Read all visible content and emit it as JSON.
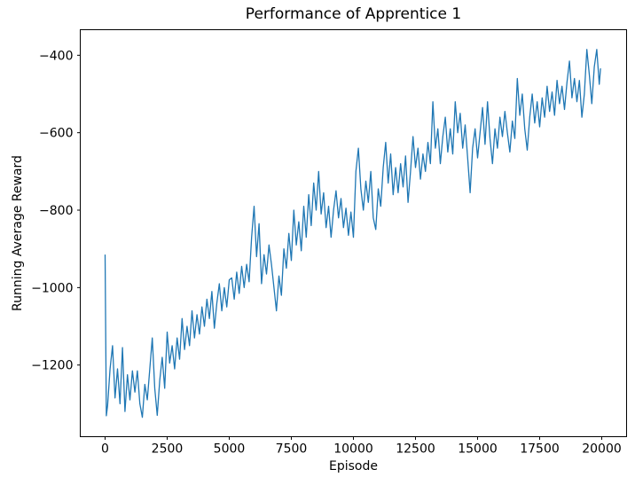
{
  "chart_data": {
    "type": "line",
    "title": "Performance of Apprentice 1",
    "xlabel": "Episode",
    "ylabel": "Running Average Reward",
    "line_color": "#1f77b4",
    "background": "#ffffff",
    "grid": false,
    "legend": null,
    "xlim": [
      -1000,
      21000
    ],
    "ylim": [
      -1385,
      -334
    ],
    "xticks": {
      "values": [
        0,
        2500,
        5000,
        7500,
        10000,
        12500,
        15000,
        17500,
        20000
      ],
      "labels": [
        "0",
        "2500",
        "5000",
        "7500",
        "10000",
        "12500",
        "15000",
        "17500",
        "20000"
      ]
    },
    "yticks": {
      "values": [
        -400,
        -600,
        -800,
        -1000,
        -1200
      ],
      "labels": [
        "−400",
        "−600",
        "−800",
        "−1000",
        "−1200"
      ]
    },
    "series": [
      {
        "name": "running-average-reward",
        "x": [
          0,
          50,
          100,
          200,
          300,
          400,
          500,
          600,
          700,
          800,
          900,
          1000,
          1100,
          1200,
          1300,
          1400,
          1500,
          1600,
          1700,
          1800,
          1900,
          2000,
          2100,
          2200,
          2300,
          2400,
          2500,
          2600,
          2700,
          2800,
          2900,
          3000,
          3100,
          3200,
          3300,
          3400,
          3500,
          3600,
          3700,
          3800,
          3900,
          4000,
          4100,
          4200,
          4300,
          4400,
          4500,
          4600,
          4700,
          4800,
          4900,
          5000,
          5100,
          5200,
          5300,
          5400,
          5500,
          5600,
          5700,
          5800,
          5900,
          6000,
          6100,
          6200,
          6300,
          6400,
          6500,
          6600,
          6700,
          6800,
          6900,
          7000,
          7100,
          7200,
          7300,
          7400,
          7500,
          7600,
          7700,
          7800,
          7900,
          8000,
          8100,
          8200,
          8300,
          8400,
          8500,
          8600,
          8700,
          8800,
          8900,
          9000,
          9100,
          9200,
          9300,
          9400,
          9500,
          9600,
          9700,
          9800,
          9900,
          10000,
          10100,
          10200,
          10300,
          10400,
          10500,
          10600,
          10700,
          10800,
          10900,
          11000,
          11100,
          11200,
          11300,
          11400,
          11500,
          11600,
          11700,
          11800,
          11900,
          12000,
          12100,
          12200,
          12300,
          12400,
          12500,
          12600,
          12700,
          12800,
          12900,
          13000,
          13100,
          13200,
          13300,
          13400,
          13500,
          13600,
          13700,
          13800,
          13900,
          14000,
          14100,
          14200,
          14300,
          14400,
          14500,
          14600,
          14700,
          14800,
          14900,
          15000,
          15100,
          15200,
          15300,
          15400,
          15500,
          15600,
          15700,
          15800,
          15900,
          16000,
          16100,
          16200,
          16300,
          16400,
          16500,
          16600,
          16700,
          16800,
          16900,
          17000,
          17100,
          17200,
          17300,
          17400,
          17500,
          17600,
          17700,
          17800,
          17900,
          18000,
          18100,
          18200,
          18300,
          18400,
          18500,
          18600,
          18700,
          18800,
          18900,
          19000,
          19100,
          19200,
          19300,
          19400,
          19500,
          19600,
          19700,
          19800,
          19900,
          19950
        ],
        "y": [
          -916,
          -1331,
          -1305,
          -1210,
          -1150,
          -1285,
          -1210,
          -1300,
          -1155,
          -1320,
          -1225,
          -1290,
          -1215,
          -1270,
          -1215,
          -1300,
          -1335,
          -1250,
          -1290,
          -1210,
          -1130,
          -1260,
          -1330,
          -1240,
          -1180,
          -1260,
          -1115,
          -1195,
          -1150,
          -1210,
          -1130,
          -1185,
          -1080,
          -1160,
          -1100,
          -1150,
          -1060,
          -1130,
          -1070,
          -1120,
          -1050,
          -1100,
          -1030,
          -1080,
          -1010,
          -1105,
          -1040,
          -990,
          -1060,
          -1000,
          -1050,
          -980,
          -975,
          -1030,
          -960,
          -1015,
          -945,
          -1000,
          -940,
          -985,
          -870,
          -790,
          -920,
          -835,
          -990,
          -915,
          -965,
          -890,
          -940,
          -1000,
          -1060,
          -970,
          -1020,
          -900,
          -950,
          -860,
          -930,
          -800,
          -890,
          -830,
          -905,
          -790,
          -870,
          -760,
          -840,
          -730,
          -800,
          -700,
          -810,
          -755,
          -845,
          -790,
          -870,
          -800,
          -750,
          -820,
          -770,
          -845,
          -795,
          -865,
          -805,
          -870,
          -700,
          -640,
          -745,
          -800,
          -725,
          -780,
          -700,
          -820,
          -850,
          -745,
          -790,
          -690,
          -625,
          -730,
          -655,
          -760,
          -690,
          -755,
          -680,
          -740,
          -660,
          -780,
          -700,
          -610,
          -690,
          -640,
          -720,
          -655,
          -700,
          -625,
          -680,
          -520,
          -640,
          -590,
          -680,
          -610,
          -560,
          -650,
          -590,
          -655,
          -520,
          -600,
          -550,
          -640,
          -580,
          -665,
          -755,
          -640,
          -590,
          -665,
          -600,
          -535,
          -630,
          -520,
          -615,
          -680,
          -590,
          -640,
          -560,
          -610,
          -545,
          -600,
          -650,
          -570,
          -615,
          -460,
          -555,
          -500,
          -590,
          -645,
          -560,
          -500,
          -575,
          -520,
          -585,
          -510,
          -560,
          -480,
          -545,
          -495,
          -555,
          -465,
          -525,
          -480,
          -540,
          -470,
          -415,
          -510,
          -460,
          -520,
          -465,
          -560,
          -500,
          -385,
          -450,
          -525,
          -430,
          -385,
          -475,
          -435
        ]
      }
    ]
  }
}
